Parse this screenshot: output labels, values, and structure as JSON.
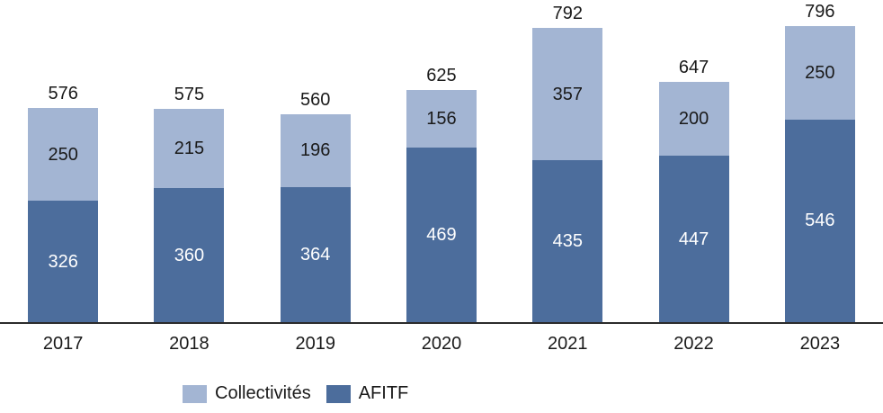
{
  "chart_data": {
    "type": "bar",
    "stacked": true,
    "title": "",
    "xlabel": "",
    "ylabel": "",
    "grid": false,
    "ylim": [
      0,
      800
    ],
    "categories": [
      "2017",
      "2018",
      "2019",
      "2020",
      "2021",
      "2022",
      "2023"
    ],
    "series": [
      {
        "name": "AFITF",
        "color": "#4C6D9C",
        "label_color": "#ffffff",
        "values": [
          326,
          360,
          364,
          469,
          435,
          447,
          546
        ]
      },
      {
        "name": "Collectivités",
        "color": "#A3B5D3",
        "label_color": "#1a1a1a",
        "values": [
          250,
          215,
          196,
          156,
          357,
          200,
          250
        ]
      }
    ],
    "totals": [
      576,
      575,
      560,
      625,
      792,
      647,
      796
    ],
    "legend": {
      "position": "bottom",
      "items": [
        {
          "label": "Collectivités",
          "color": "#A3B5D3"
        },
        {
          "label": "AFITF",
          "color": "#4C6D9C"
        }
      ]
    }
  }
}
